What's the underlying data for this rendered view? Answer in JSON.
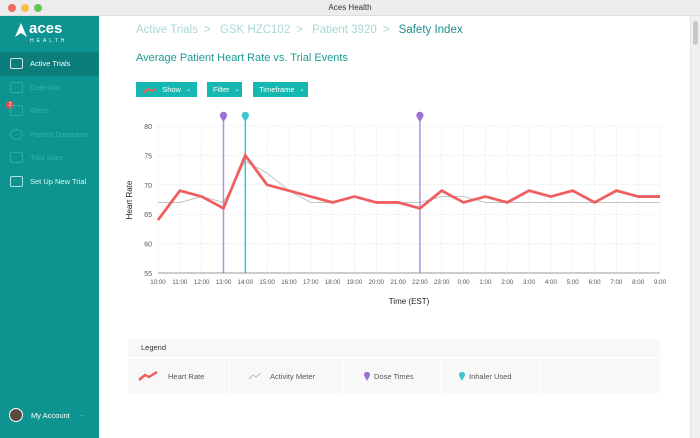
{
  "window": {
    "title": "Aces Health"
  },
  "brand": {
    "name": "aces",
    "sub": "HEALTH"
  },
  "sidebar": {
    "items": [
      {
        "label": "Active Trials",
        "icon": "network-icon"
      },
      {
        "label": "Calendar",
        "icon": "calendar-icon"
      },
      {
        "label": "Alerts",
        "icon": "alert-icon",
        "badge": "2"
      },
      {
        "label": "Patient Database",
        "icon": "person-icon"
      },
      {
        "label": "Trial Sites",
        "icon": "box-icon"
      },
      {
        "label": "Set Up New Trial",
        "icon": "map-icon"
      }
    ],
    "account": "My Account"
  },
  "breadcrumb": [
    "Active Trials",
    "GSK HZC102",
    "Patient 3920",
    "Safety Index"
  ],
  "toolbar": {
    "show": "Show",
    "filter": "Filter",
    "timeframe": "Timeframe"
  },
  "colors": {
    "accent": "#14b8b1",
    "sidebar": "#0d9490",
    "heart": "#ef5f5f",
    "activity": "#c4c4c4",
    "dose": "#9b6fd6",
    "inhaler": "#3cc4cf"
  },
  "chart_data": {
    "type": "line",
    "title": "Average Patient Heart Rate vs. Trial Events",
    "xlabel": "Time (EST)",
    "ylabel": "Heart Rate",
    "ylim": [
      55,
      80
    ],
    "yticks": [
      55,
      60,
      65,
      70,
      75,
      80
    ],
    "grid": true,
    "x": [
      "10:00",
      "11:00",
      "12:00",
      "13:00",
      "14:00",
      "15:00",
      "16:00",
      "17:00",
      "18:00",
      "19:00",
      "20:00",
      "21:00",
      "22:00",
      "23:00",
      "0:00",
      "1:00",
      "2:00",
      "3:00",
      "4:00",
      "5:00",
      "6:00",
      "7:00",
      "8:00",
      "9:00"
    ],
    "series": [
      {
        "name": "Heart Rate",
        "values": [
          64,
          69,
          68,
          66,
          75,
          70,
          69,
          68,
          67,
          68,
          67,
          67,
          66,
          69,
          67,
          68,
          67,
          69,
          68,
          69,
          67,
          69,
          68,
          68
        ]
      },
      {
        "name": "Activity Meter",
        "values": [
          67,
          67,
          68,
          67,
          74,
          72,
          69,
          67,
          67,
          68,
          67,
          67,
          67,
          68,
          68,
          67,
          67,
          67,
          67,
          67,
          67,
          67,
          67,
          67
        ]
      }
    ],
    "events": [
      {
        "name": "Dose Times",
        "x": [
          "13:00",
          "22:00"
        ]
      },
      {
        "name": "Inhaler Used",
        "x": [
          "14:00"
        ]
      }
    ]
  },
  "legend": {
    "title": "Legend",
    "items": [
      "Heart Rate",
      "Activity Meter",
      "Dose Times",
      "Inhaler Used"
    ]
  }
}
